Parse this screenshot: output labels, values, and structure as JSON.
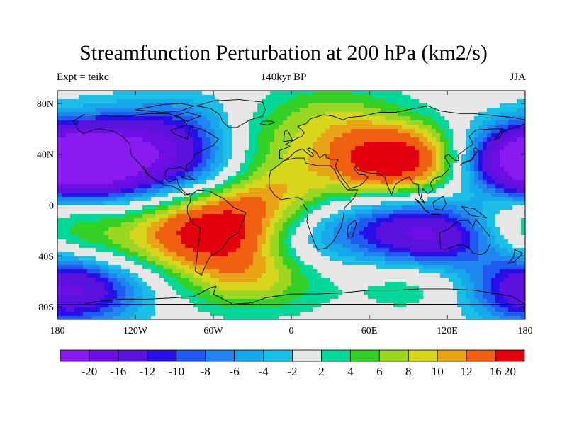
{
  "title": "Streamfunction Perturbation at 200 hPa (km2/s)",
  "subtitle_left": "Expt = teikc",
  "subtitle_center": "140kyr BP",
  "subtitle_right": "JJA",
  "lat_ticks": [
    "80N",
    "40N",
    "0",
    "40S",
    "80S"
  ],
  "lon_ticks": [
    "180",
    "120W",
    "60W",
    "0",
    "60E",
    "120E",
    "180"
  ],
  "colorbar_labels": [
    "-20",
    "-16",
    "-12",
    "-10",
    "-8",
    "-6",
    "-4",
    "-2",
    "2",
    "4",
    "6",
    "8",
    "10",
    "12",
    "16",
    "20"
  ],
  "colors": {
    "palette": [
      "#8a1bf0",
      "#6d0ee4",
      "#5a12dc",
      "#2a10e8",
      "#1f5bf0",
      "#1f86f0",
      "#17a7eb",
      "#19bfe6",
      "#e6e6e6",
      "#00d89a",
      "#35d025",
      "#9bd722",
      "#d8d61c",
      "#e8a317",
      "#ef6011",
      "#e1000b"
    ],
    "background": "#e6e6e6"
  },
  "chart_data": {
    "type": "heatmap",
    "title": "Streamfunction Perturbation at 200 hPa (km2/s)",
    "subtitle": "140kyr BP",
    "experiment": "Expt = teikc",
    "season": "JJA",
    "xlim": [
      -180,
      180
    ],
    "ylim": [
      -90,
      90
    ],
    "x_ticks": [
      -180,
      -120,
      -60,
      0,
      60,
      120,
      180
    ],
    "y_ticks": [
      80,
      40,
      0,
      -40,
      -80
    ],
    "levels": [
      -20,
      -16,
      -12,
      -10,
      -8,
      -6,
      -4,
      -2,
      2,
      4,
      6,
      8,
      10,
      12,
      16,
      20
    ],
    "features": [
      {
        "lon": 80,
        "lat": 35,
        "value": 20
      },
      {
        "lon": 30,
        "lat": 70,
        "value": 6
      },
      {
        "lon": -60,
        "lat": -20,
        "value": 18
      },
      {
        "lon": -140,
        "lat": -35,
        "value": 5
      },
      {
        "lon": -30,
        "lat": -55,
        "value": 10
      },
      {
        "lon": 100,
        "lat": -55,
        "value": 6
      },
      {
        "lon": -150,
        "lat": 35,
        "value": -20
      },
      {
        "lon": -90,
        "lat": 55,
        "value": -14
      },
      {
        "lon": -70,
        "lat": 30,
        "value": -12
      },
      {
        "lon": 110,
        "lat": -25,
        "value": -18
      },
      {
        "lon": 180,
        "lat": 35,
        "value": -16
      },
      {
        "lon": -170,
        "lat": -65,
        "value": -18
      },
      {
        "lon": -100,
        "lat": 45,
        "value": 6
      },
      {
        "lon": -40,
        "lat": 45,
        "value": 8
      },
      {
        "lon": -20,
        "lat": 10,
        "value": 10
      },
      {
        "lon": 5,
        "lat": -25,
        "value": -4
      },
      {
        "lon": 60,
        "lat": -15,
        "value": -4
      },
      {
        "lon": -5,
        "lat": -35,
        "value": -2
      },
      {
        "lon": 170,
        "lat": -15,
        "value": 6
      }
    ]
  }
}
